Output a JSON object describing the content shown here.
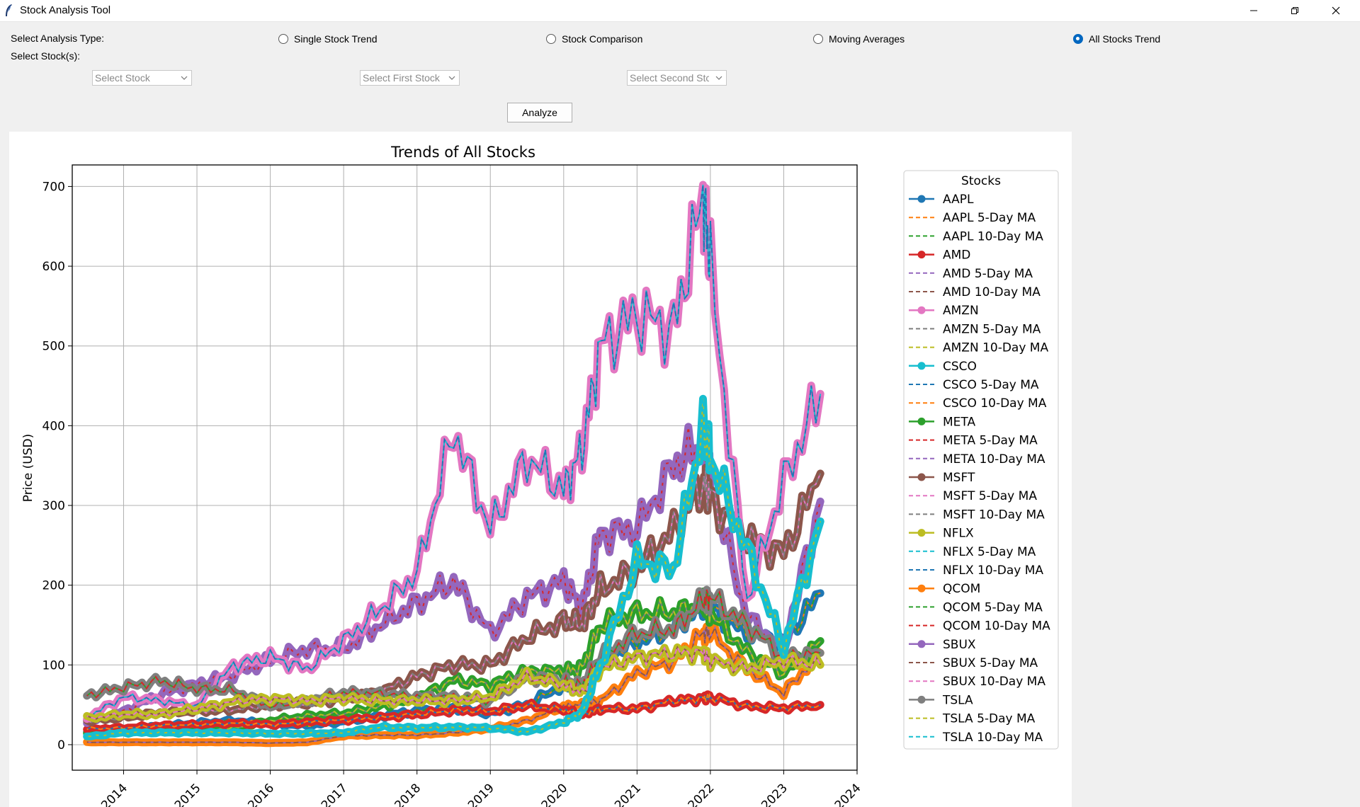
{
  "window": {
    "title": "Stock Analysis Tool"
  },
  "controls": {
    "analysis_type_label": "Select Analysis Type:",
    "stock_label": "Select Stock(s):",
    "radios": [
      {
        "label": "Single Stock Trend",
        "selected": false
      },
      {
        "label": "Stock Comparison",
        "selected": false
      },
      {
        "label": "Moving Averages",
        "selected": false
      },
      {
        "label": "All Stocks Trend",
        "selected": true
      }
    ],
    "combos": [
      {
        "placeholder": "Select Stock"
      },
      {
        "placeholder": "Select First Stock"
      },
      {
        "placeholder": "Select Second Stc"
      }
    ],
    "analyze_label": "Analyze"
  },
  "colors": {
    "accent": "#0067c0",
    "series_palette": [
      "#1f77b4",
      "#ff7f0e",
      "#2ca02c",
      "#d62728",
      "#9467bd",
      "#8c564b",
      "#e377c2",
      "#7f7f7f",
      "#bcbd22",
      "#17becf"
    ]
  },
  "chart_data": {
    "type": "line",
    "title": "Trends of All Stocks",
    "xlabel": "",
    "ylabel": "Price (USD)",
    "x_range": [
      2013.3,
      2024.0
    ],
    "ylim": [
      -32,
      727
    ],
    "x_ticks": [
      "2014",
      "2015",
      "2016",
      "2017",
      "2018",
      "2019",
      "2020",
      "2021",
      "2022",
      "2023",
      "2024"
    ],
    "y_ticks": [
      0,
      100,
      200,
      300,
      400,
      500,
      600,
      700
    ],
    "grid": true,
    "legend_title": "Stocks",
    "legend_position": "right",
    "x": [
      2013.5,
      2014.0,
      2014.5,
      2015.0,
      2015.5,
      2016.0,
      2016.5,
      2017.0,
      2017.5,
      2018.0,
      2018.5,
      2019.0,
      2019.5,
      2020.0,
      2020.25,
      2020.5,
      2021.0,
      2021.5,
      2021.9,
      2022.0,
      2022.5,
      2023.0,
      2023.5
    ],
    "series": [
      {
        "name": "AAPL",
        "values": [
          16,
          19,
          23,
          27,
          30,
          26,
          24,
          29,
          36,
          42,
          46,
          39,
          50,
          75,
          70,
          105,
          130,
          145,
          175,
          170,
          140,
          130,
          190
        ]
      },
      {
        "name": "AMD",
        "values": [
          3,
          3,
          3,
          3,
          3,
          2,
          3,
          11,
          12,
          12,
          15,
          20,
          30,
          48,
          50,
          55,
          90,
          105,
          140,
          140,
          95,
          65,
          115
        ]
      },
      {
        "name": "AMZN",
        "values": [
          14,
          17,
          18,
          17,
          21,
          30,
          36,
          39,
          48,
          58,
          81,
          75,
          92,
          92,
          96,
          150,
          165,
          165,
          175,
          165,
          115,
          90,
          130
        ]
      },
      {
        "name": "CSCO",
        "values": [
          20,
          21,
          24,
          25,
          27,
          25,
          28,
          31,
          34,
          38,
          43,
          42,
          49,
          44,
          38,
          45,
          45,
          55,
          58,
          60,
          48,
          46,
          50
        ]
      },
      {
        "name": "META",
        "values": [
          27,
          42,
          63,
          76,
          88,
          106,
          120,
          120,
          150,
          178,
          205,
          140,
          185,
          205,
          170,
          265,
          270,
          350,
          380,
          330,
          160,
          120,
          305
        ]
      },
      {
        "name": "MSFT",
        "values": [
          30,
          34,
          40,
          42,
          44,
          50,
          52,
          58,
          66,
          86,
          100,
          100,
          135,
          155,
          150,
          195,
          220,
          270,
          330,
          310,
          260,
          240,
          340
        ]
      },
      {
        "name": "NFLX",
        "values": [
          34,
          60,
          55,
          48,
          100,
          110,
          95,
          130,
          170,
          215,
          395,
          270,
          360,
          320,
          370,
          500,
          540,
          520,
          690,
          600,
          180,
          330,
          440
        ]
      },
      {
        "name": "QCOM",
        "values": [
          62,
          72,
          80,
          70,
          68,
          48,
          55,
          65,
          64,
          60,
          60,
          55,
          85,
          80,
          75,
          110,
          140,
          145,
          180,
          185,
          150,
          110,
          115
        ]
      },
      {
        "name": "SBUX",
        "values": [
          33,
          38,
          38,
          45,
          54,
          58,
          55,
          58,
          55,
          55,
          55,
          60,
          85,
          75,
          65,
          95,
          110,
          115,
          115,
          105,
          95,
          105,
          100
        ]
      },
      {
        "name": "TSLA",
        "values": [
          10,
          15,
          15,
          15,
          15,
          14,
          14,
          15,
          22,
          21,
          22,
          21,
          16,
          28,
          40,
          100,
          230,
          220,
          400,
          360,
          245,
          120,
          280
        ]
      }
    ],
    "legend_entries": [
      "AAPL",
      "AAPL 5-Day MA",
      "AAPL 10-Day MA",
      "AMD",
      "AMD 5-Day MA",
      "AMD 10-Day MA",
      "AMZN",
      "AMZN 5-Day MA",
      "AMZN 10-Day MA",
      "CSCO",
      "CSCO 5-Day MA",
      "CSCO 10-Day MA",
      "META",
      "META 5-Day MA",
      "META 10-Day MA",
      "MSFT",
      "MSFT 5-Day MA",
      "MSFT 10-Day MA",
      "NFLX",
      "NFLX 5-Day MA",
      "NFLX 10-Day MA",
      "QCOM",
      "QCOM 5-Day MA",
      "QCOM 10-Day MA",
      "SBUX",
      "SBUX 5-Day MA",
      "SBUX 10-Day MA",
      "TSLA",
      "TSLA 5-Day MA",
      "TSLA 10-Day MA"
    ]
  }
}
